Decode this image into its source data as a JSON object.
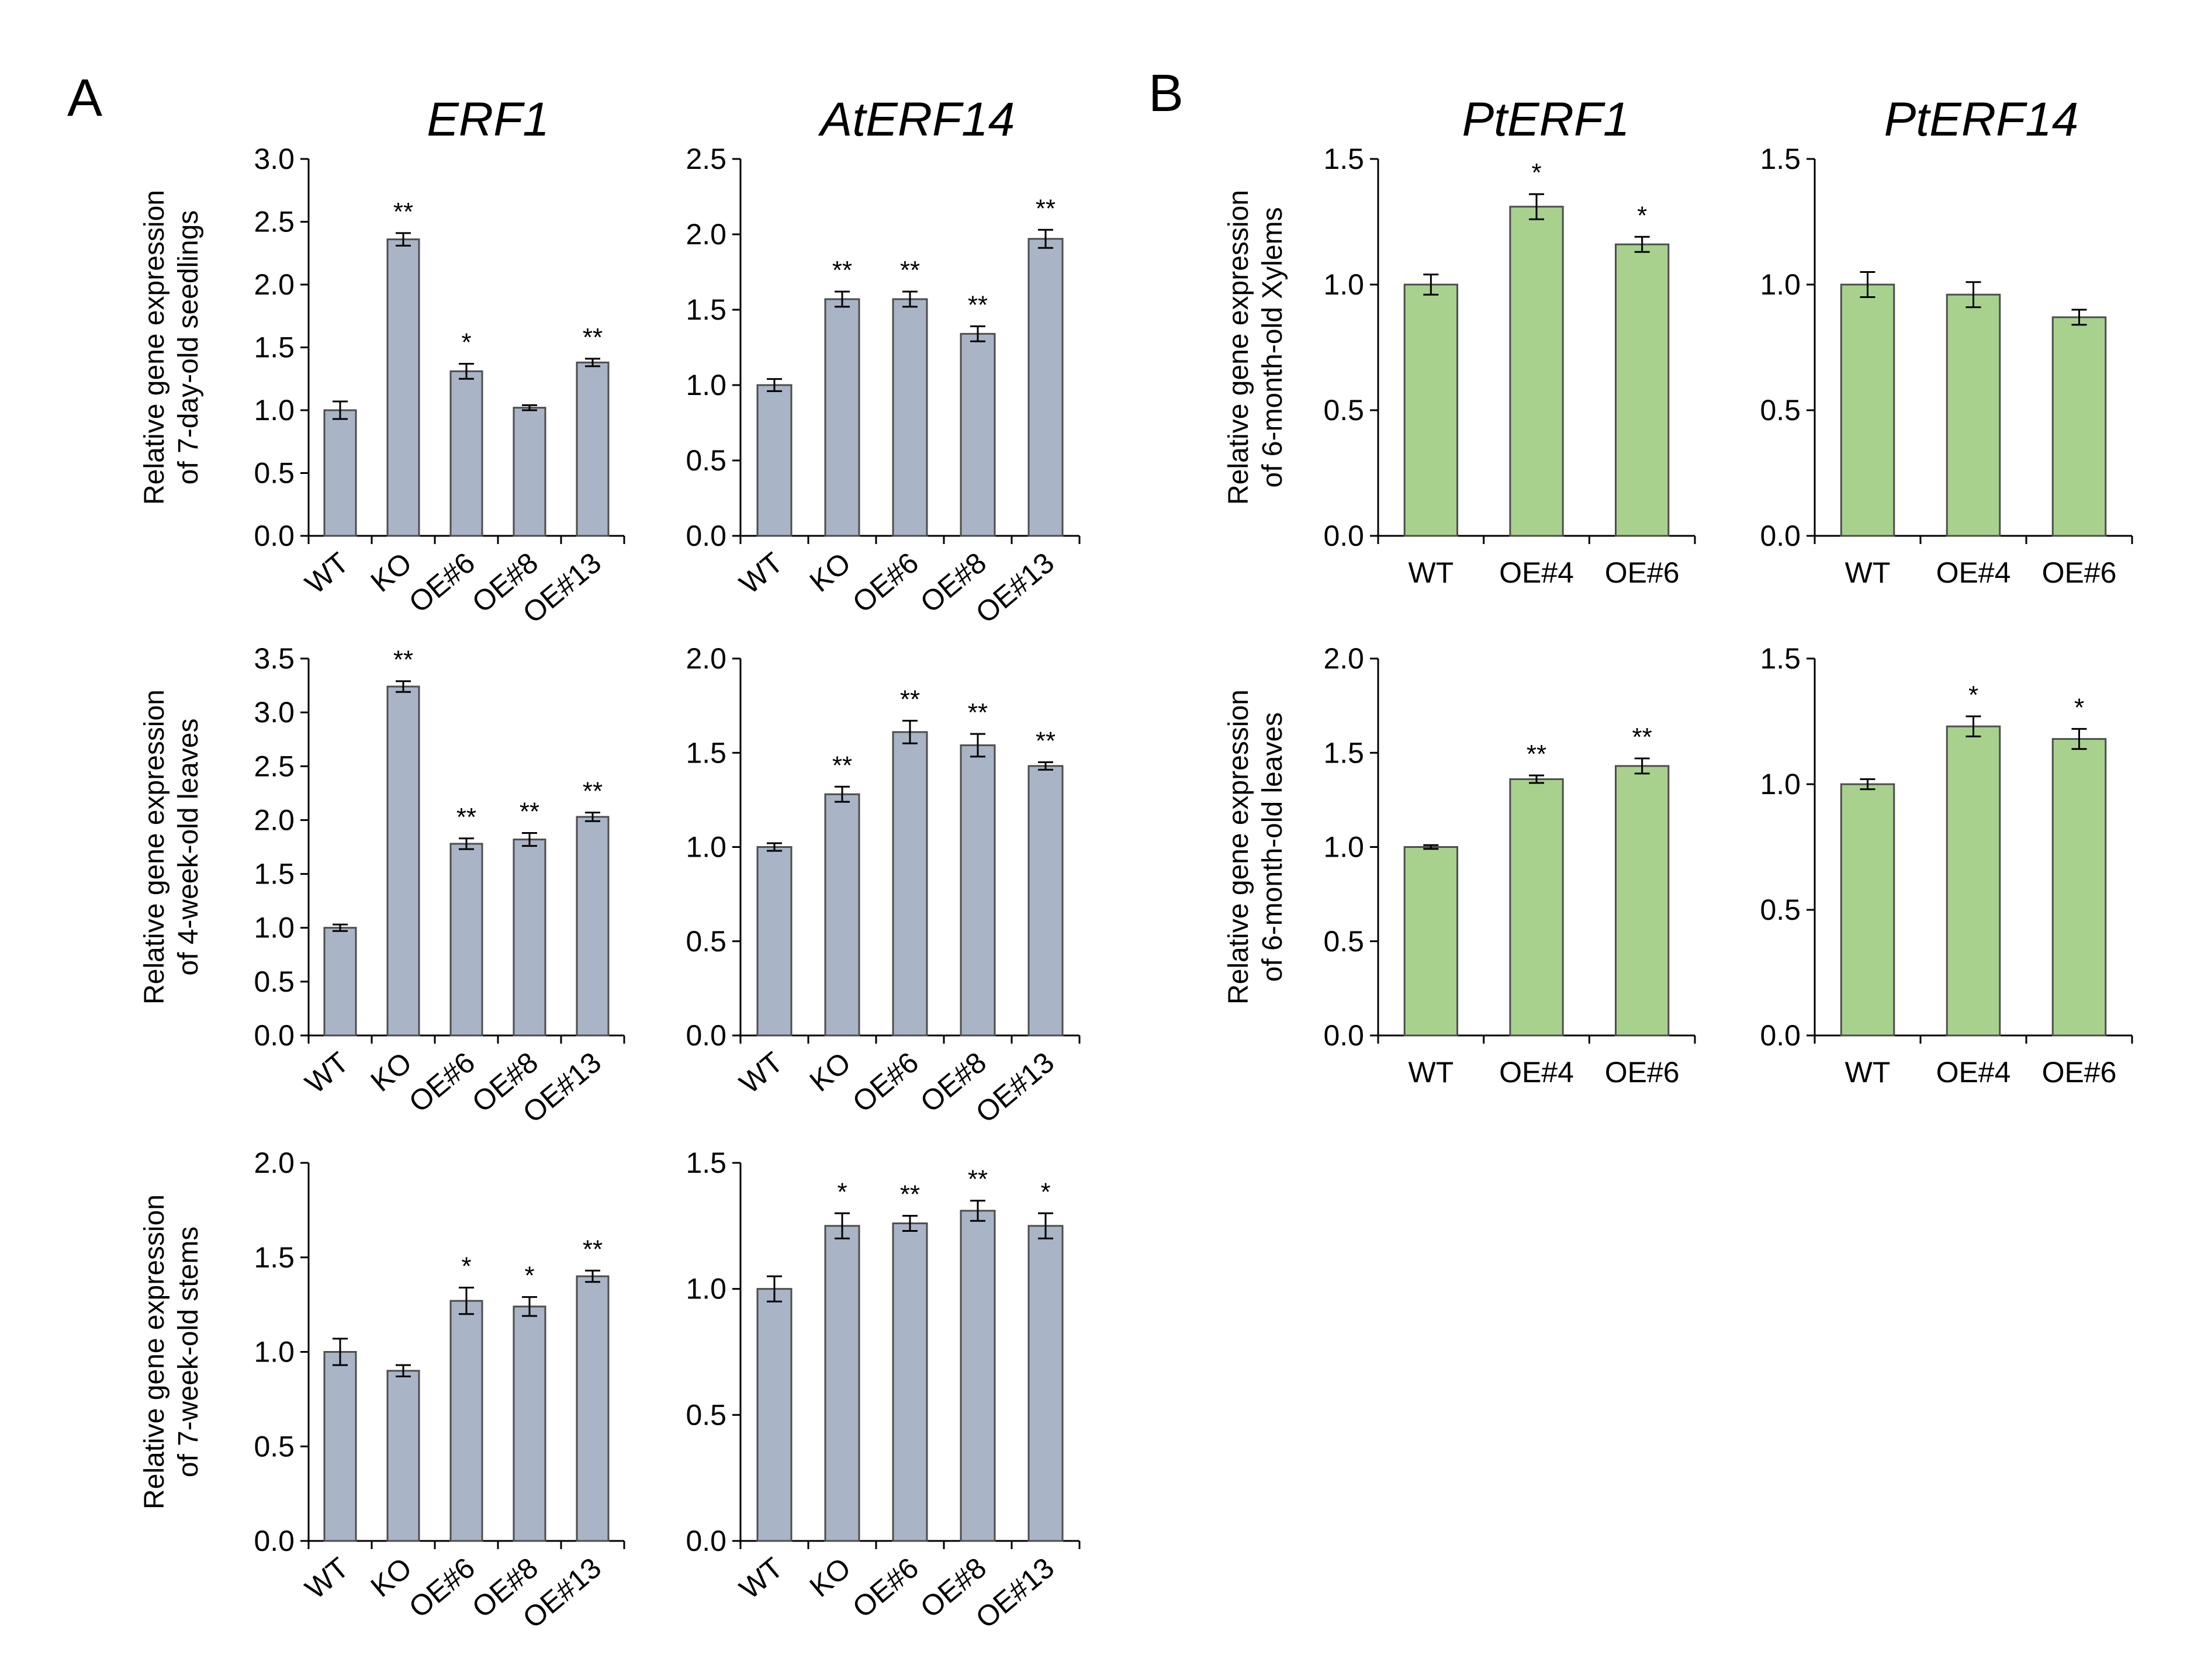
{
  "panel_labels": {
    "a": "A",
    "b": "B"
  },
  "colors": {
    "panel_a_bar": "#a9b4c6",
    "panel_b_bar": "#a9d18e",
    "bar_edge": "#4d4d4d"
  },
  "chart_data": [
    {
      "type": "bar",
      "title": "ERF1",
      "ylabel": [
        "Relative gene expression",
        "of 7-day-old seedlings"
      ],
      "categories": [
        "WT",
        "KO",
        "OE#6",
        "OE#8",
        "OE#13"
      ],
      "values": [
        1.0,
        2.36,
        1.31,
        1.02,
        1.38
      ],
      "errors": [
        0.07,
        0.05,
        0.06,
        0.02,
        0.03
      ],
      "significance": [
        "",
        "**",
        "*",
        "",
        "**"
      ],
      "ylim": [
        0,
        3.0
      ],
      "yticks": [
        "0.0",
        "0.5",
        "1.0",
        "1.5",
        "2.0",
        "2.5",
        "3.0"
      ]
    },
    {
      "type": "bar",
      "title": "AtERF14",
      "ylabel": [],
      "categories": [
        "WT",
        "KO",
        "OE#6",
        "OE#8",
        "OE#13"
      ],
      "values": [
        1.0,
        1.57,
        1.57,
        1.34,
        1.97
      ],
      "errors": [
        0.04,
        0.05,
        0.05,
        0.05,
        0.06
      ],
      "significance": [
        "",
        "**",
        "**",
        "**",
        "**"
      ],
      "ylim": [
        0,
        2.5
      ],
      "yticks": [
        "0.0",
        "0.5",
        "1.0",
        "1.5",
        "2.0",
        "2.5"
      ]
    },
    {
      "type": "bar",
      "title": "",
      "ylabel": [
        "Relative gene expression",
        "of 4-week-old leaves"
      ],
      "categories": [
        "WT",
        "KO",
        "OE#6",
        "OE#8",
        "OE#13"
      ],
      "values": [
        1.0,
        3.24,
        1.78,
        1.82,
        2.03
      ],
      "errors": [
        0.03,
        0.05,
        0.05,
        0.06,
        0.04
      ],
      "significance": [
        "",
        "**",
        "**",
        "**",
        "**"
      ],
      "ylim": [
        0,
        3.5
      ],
      "yticks": [
        "0.0",
        "0.5",
        "1.0",
        "1.5",
        "2.0",
        "2.5",
        "3.0",
        "3.5"
      ]
    },
    {
      "type": "bar",
      "title": "",
      "ylabel": [],
      "categories": [
        "WT",
        "KO",
        "OE#6",
        "OE#8",
        "OE#13"
      ],
      "values": [
        1.0,
        1.28,
        1.61,
        1.54,
        1.43
      ],
      "errors": [
        0.02,
        0.04,
        0.06,
        0.06,
        0.02
      ],
      "significance": [
        "",
        "**",
        "**",
        "**",
        "**"
      ],
      "ylim": [
        0,
        2.0
      ],
      "yticks": [
        "0.0",
        "0.5",
        "1.0",
        "1.5",
        "2.0"
      ]
    },
    {
      "type": "bar",
      "title": "",
      "ylabel": [
        "Relative gene expression",
        "of 7-week-old stems"
      ],
      "categories": [
        "WT",
        "KO",
        "OE#6",
        "OE#8",
        "OE#13"
      ],
      "values": [
        1.0,
        0.9,
        1.27,
        1.24,
        1.4
      ],
      "errors": [
        0.07,
        0.03,
        0.07,
        0.05,
        0.03
      ],
      "significance": [
        "",
        "",
        "*",
        "*",
        "**"
      ],
      "ylim": [
        0,
        2.0
      ],
      "yticks": [
        "0.0",
        "0.5",
        "1.0",
        "1.5",
        "2.0"
      ]
    },
    {
      "type": "bar",
      "title": "",
      "ylabel": [],
      "categories": [
        "WT",
        "KO",
        "OE#6",
        "OE#8",
        "OE#13"
      ],
      "values": [
        1.0,
        1.25,
        1.26,
        1.31,
        1.25
      ],
      "errors": [
        0.05,
        0.05,
        0.03,
        0.04,
        0.05
      ],
      "significance": [
        "",
        "*",
        "**",
        "**",
        "*"
      ],
      "ylim": [
        0,
        1.5
      ],
      "yticks": [
        "0.0",
        "0.5",
        "1.0",
        "1.5"
      ]
    },
    {
      "type": "bar",
      "title": "PtERF1",
      "ylabel": [
        "Relative gene expression",
        "of 6-month-old Xylems"
      ],
      "categories": [
        "WT",
        "OE#4",
        "OE#6"
      ],
      "values": [
        1.0,
        1.31,
        1.16
      ],
      "errors": [
        0.04,
        0.05,
        0.03
      ],
      "significance": [
        "",
        "*",
        "*"
      ],
      "ylim": [
        0,
        1.5
      ],
      "yticks": [
        "0.0",
        "0.5",
        "1.0",
        "1.5"
      ]
    },
    {
      "type": "bar",
      "title": "PtERF14",
      "ylabel": [],
      "categories": [
        "WT",
        "OE#4",
        "OE#6"
      ],
      "values": [
        1.0,
        0.96,
        0.87
      ],
      "errors": [
        0.05,
        0.05,
        0.03
      ],
      "significance": [
        "",
        "",
        ""
      ],
      "ylim": [
        0,
        1.5
      ],
      "yticks": [
        "0.0",
        "0.5",
        "1.0",
        "1.5"
      ]
    },
    {
      "type": "bar",
      "title": "",
      "ylabel": [
        "Relative gene expression",
        "of 6-month-old leaves"
      ],
      "categories": [
        "WT",
        "OE#4",
        "OE#6"
      ],
      "values": [
        1.0,
        1.36,
        1.43
      ],
      "errors": [
        0.01,
        0.02,
        0.04
      ],
      "significance": [
        "",
        "**",
        "**"
      ],
      "ylim": [
        0,
        2.0
      ],
      "yticks": [
        "0.0",
        "0.5",
        "1.0",
        "1.5",
        "2.0"
      ]
    },
    {
      "type": "bar",
      "title": "",
      "ylabel": [],
      "categories": [
        "WT",
        "OE#4",
        "OE#6"
      ],
      "values": [
        1.0,
        1.23,
        1.18
      ],
      "errors": [
        0.02,
        0.04,
        0.04
      ],
      "significance": [
        "",
        "*",
        "*"
      ],
      "ylim": [
        0,
        1.5
      ],
      "yticks": [
        "0.0",
        "0.5",
        "1.0",
        "1.5"
      ]
    }
  ]
}
